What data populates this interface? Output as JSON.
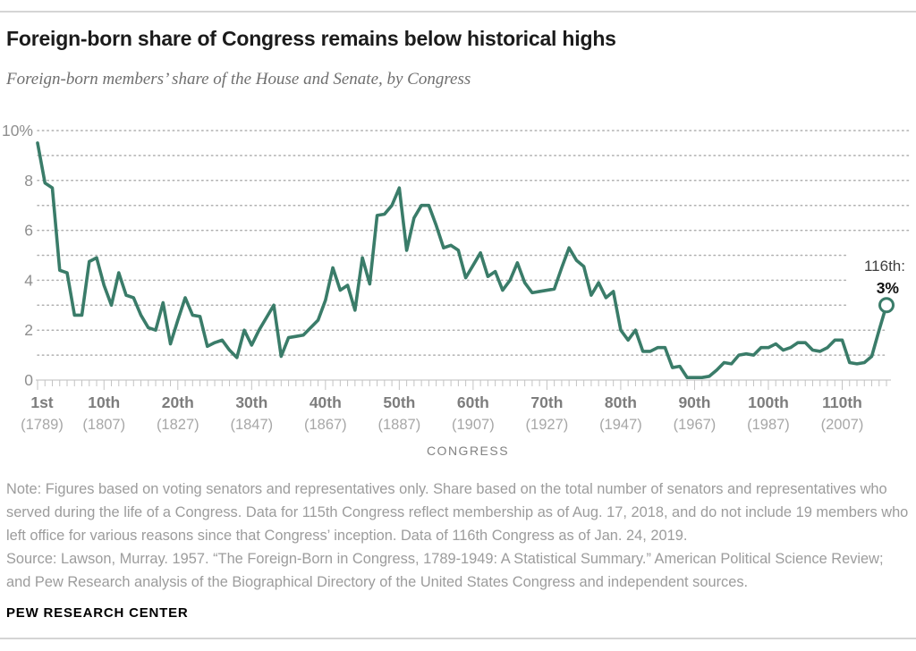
{
  "header": {
    "title": "Foreign-born share of Congress remains below historical highs",
    "subtitle": "Foreign-born members’ share of the House and Senate, by Congress"
  },
  "chart_data": {
    "type": "line",
    "title": "Foreign-born share of Congress remains below historical highs",
    "subtitle": "Foreign-born members’ share of the House and Senate, by Congress",
    "xlabel": "CONGRESS",
    "ylabel": "",
    "ylim": [
      0,
      10
    ],
    "grid": "dotted horizontal line at every 1%",
    "legend_position": "none",
    "y_ticks": [
      {
        "value": 10,
        "label": "10%"
      },
      {
        "value": 8,
        "label": "8"
      },
      {
        "value": 6,
        "label": "6"
      },
      {
        "value": 4,
        "label": "4"
      },
      {
        "value": 2,
        "label": "2"
      },
      {
        "value": 0,
        "label": "0"
      }
    ],
    "x_ticks": [
      {
        "congress": 1,
        "label": "1st",
        "year": "(1789)"
      },
      {
        "congress": 10,
        "label": "10th",
        "year": "(1807)"
      },
      {
        "congress": 20,
        "label": "20th",
        "year": "(1827)"
      },
      {
        "congress": 30,
        "label": "30th",
        "year": "(1847)"
      },
      {
        "congress": 40,
        "label": "40th",
        "year": "(1867)"
      },
      {
        "congress": 50,
        "label": "50th",
        "year": "(1887)"
      },
      {
        "congress": 60,
        "label": "60th",
        "year": "(1907)"
      },
      {
        "congress": 70,
        "label": "70th",
        "year": "(1927)"
      },
      {
        "congress": 80,
        "label": "80th",
        "year": "(1947)"
      },
      {
        "congress": 90,
        "label": "90th",
        "year": "(1967)"
      },
      {
        "congress": 100,
        "label": "100th",
        "year": "(1987)"
      },
      {
        "congress": 110,
        "label": "110th",
        "year": "(2007)"
      }
    ],
    "series": [
      {
        "name": "Foreign-born share of Congress (%)",
        "color": "#3a7c69",
        "x_start_congress": 1,
        "x_end_congress": 116,
        "values": [
          9.5,
          7.9,
          7.7,
          4.4,
          4.3,
          2.6,
          2.6,
          4.75,
          4.9,
          3.8,
          3.0,
          4.3,
          3.4,
          3.3,
          2.6,
          2.1,
          2.0,
          3.1,
          1.45,
          2.4,
          3.3,
          2.6,
          2.55,
          1.35,
          1.5,
          1.6,
          1.2,
          0.9,
          2.0,
          1.4,
          2.0,
          2.5,
          3.0,
          0.95,
          1.7,
          1.75,
          1.8,
          2.1,
          2.4,
          3.2,
          4.5,
          3.6,
          3.8,
          2.8,
          4.9,
          3.85,
          6.6,
          6.65,
          7.0,
          7.7,
          5.2,
          6.5,
          7.0,
          7.0,
          6.2,
          5.3,
          5.4,
          5.2,
          4.1,
          4.6,
          5.1,
          4.15,
          4.35,
          3.6,
          4.0,
          4.7,
          3.9,
          3.5,
          3.55,
          3.6,
          3.65,
          4.5,
          5.3,
          4.8,
          4.55,
          3.4,
          3.9,
          3.3,
          3.55,
          2.0,
          1.6,
          2.0,
          1.15,
          1.15,
          1.3,
          1.3,
          0.5,
          0.55,
          0.1,
          0.1,
          0.1,
          0.15,
          0.4,
          0.7,
          0.65,
          1.0,
          1.05,
          1.0,
          1.3,
          1.3,
          1.45,
          1.2,
          1.3,
          1.5,
          1.5,
          1.2,
          1.15,
          1.3,
          1.6,
          1.6,
          0.7,
          0.65,
          0.7,
          0.95,
          2.0,
          3.0
        ]
      }
    ],
    "annotation": {
      "label": "116th:",
      "value": "3%",
      "marker": "open-circle-on-last-point"
    }
  },
  "footnote": {
    "note": "Note: Figures based on voting senators and representatives only. Share based on the total number of senators and representatives who served during the life of a Congress. Data for 115th Congress reflect membership as of Aug. 17, 2018, and do not include 19 members who left office for various reasons since that Congress’ inception. Data of 116th Congress as of Jan. 24, 2019.",
    "source": "Source: Lawson, Murray. 1957. “The Foreign-Born in Congress, 1789-1949: A Statistical Summary.” American Political Science Review; and Pew Research analysis of the Biographical Directory of the United States Congress and independent sources."
  },
  "footer": {
    "brand": "PEW RESEARCH CENTER"
  },
  "colors": {
    "line": "#3a7c69",
    "grid_dots": "#b0b0b0",
    "axis": "#c9c9c9",
    "tick": "#c3c3c3",
    "y_label": "#8f8f8f",
    "x_label": "#7d7d7d",
    "x_year": "#a7a7a7",
    "axis_title": "#828282",
    "annotation_label": "#3f3f3f",
    "annotation_value": "#111111"
  }
}
